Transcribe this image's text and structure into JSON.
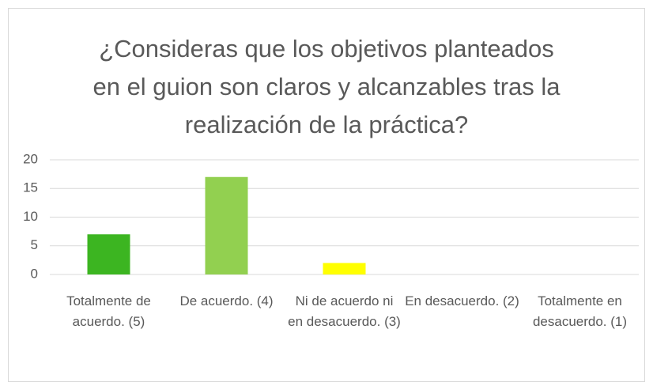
{
  "chart_data": {
    "type": "bar",
    "title": "¿Consideras que los objetivos planteados en el guion son claros y alcanzables tras la realización de la práctica?",
    "categories": [
      "Totalmente de acuerdo. (5)",
      "De acuerdo. (4)",
      "Ni de acuerdo ni en desacuerdo. (3)",
      "En desacuerdo. (2)",
      "Totalmente en desacuerdo. (1)"
    ],
    "values": [
      7,
      17,
      2,
      0,
      0
    ],
    "colors": [
      "#3cb521",
      "#92d050",
      "#ffff00",
      "#ffc000",
      "#ff0000"
    ],
    "ylim": [
      0,
      20
    ],
    "yticks": [
      0,
      5,
      10,
      15,
      20
    ],
    "grid": true
  }
}
